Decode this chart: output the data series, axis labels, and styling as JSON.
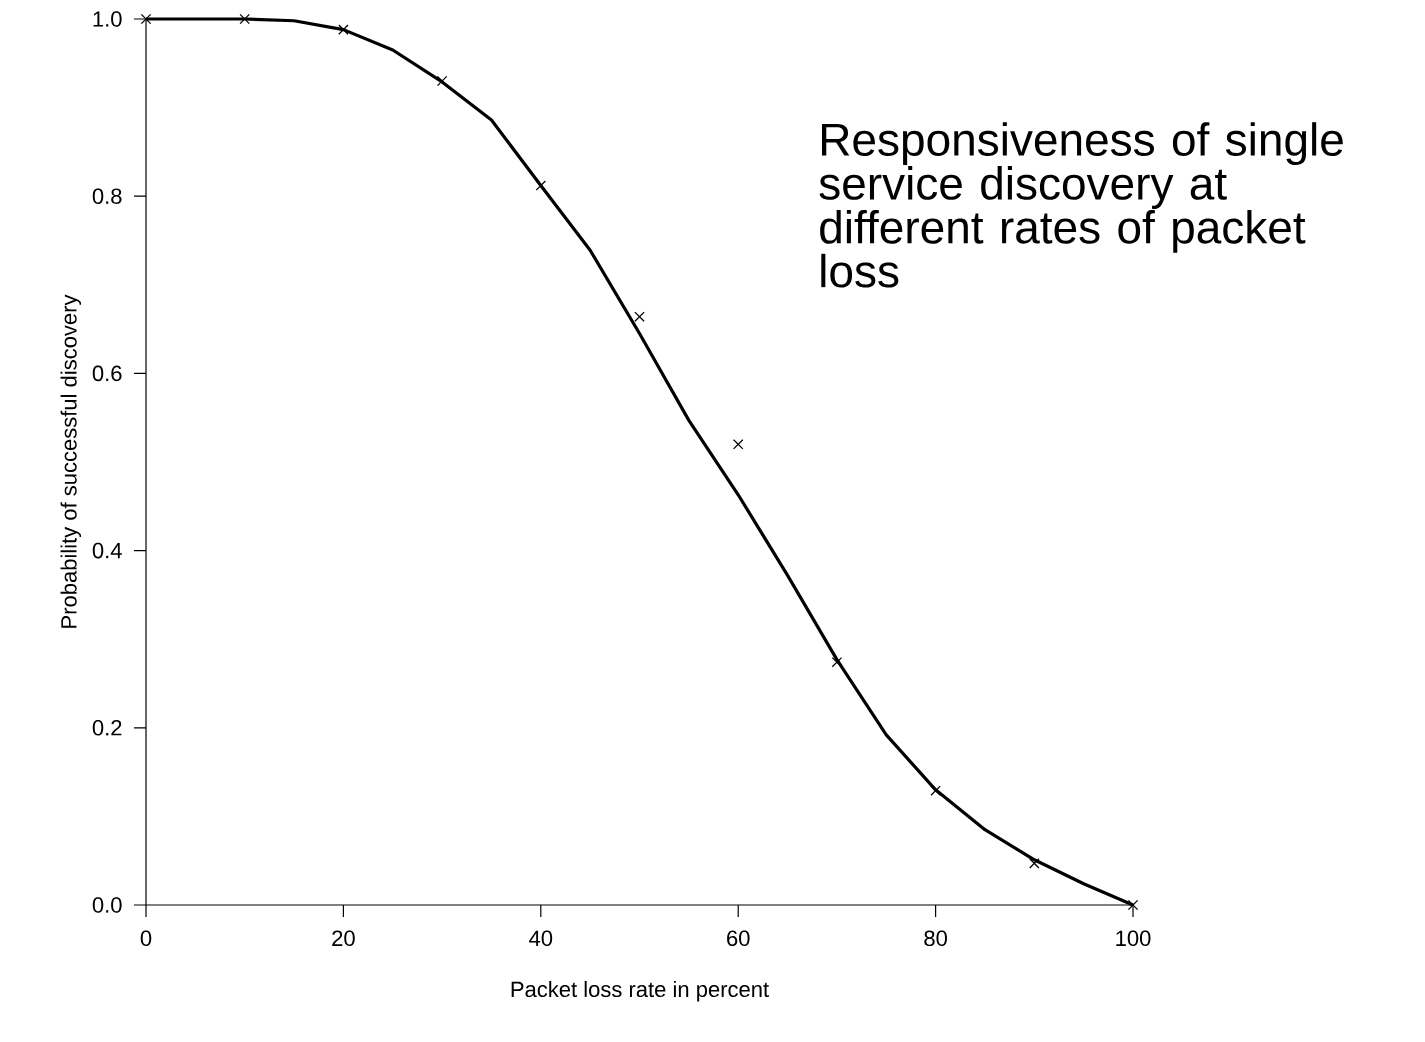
{
  "chart_data": {
    "type": "line",
    "title": "Responsiveness of single service discovery at different rates of packet loss",
    "xlabel": "Packet loss rate in percent",
    "ylabel": "Probability of successful discovery",
    "xlim": [
      0,
      100
    ],
    "ylim": [
      0,
      1
    ],
    "xticks": [
      0,
      20,
      40,
      60,
      80,
      100
    ],
    "yticks": [
      {
        "value": 0,
        "label": "0.0"
      },
      {
        "value": 0.2,
        "label": "0.2"
      },
      {
        "value": 0.4,
        "label": "0.4"
      },
      {
        "value": 0.6,
        "label": "0.6"
      },
      {
        "value": 0.8,
        "label": "0.8"
      },
      {
        "value": 1,
        "label": "1.0"
      }
    ],
    "grid": false,
    "series": [
      {
        "color": "#000000",
        "marker": "none",
        "line_style": "solid",
        "x": [
          0,
          5,
          10,
          15,
          20,
          25,
          30,
          35,
          40,
          45,
          50,
          55,
          60,
          65,
          70,
          75,
          80,
          85,
          90,
          95,
          100
        ],
        "values": [
          1.0,
          1.0,
          1.0,
          0.998,
          0.988,
          0.965,
          0.929,
          0.886,
          0.812,
          0.739,
          0.645,
          0.547,
          0.463,
          0.372,
          0.277,
          0.192,
          0.13,
          0.085,
          0.051,
          0.024,
          0.0
        ]
      },
      {
        "type": "scatter",
        "color": "#000000",
        "marker": "cross",
        "x": [
          0,
          10,
          20,
          30,
          40,
          50,
          60,
          70,
          80,
          90,
          100
        ],
        "values": [
          1.0,
          1.0,
          0.988,
          0.93,
          0.812,
          0.664,
          0.52,
          0.274,
          0.129,
          0.047,
          0.0
        ]
      }
    ]
  }
}
